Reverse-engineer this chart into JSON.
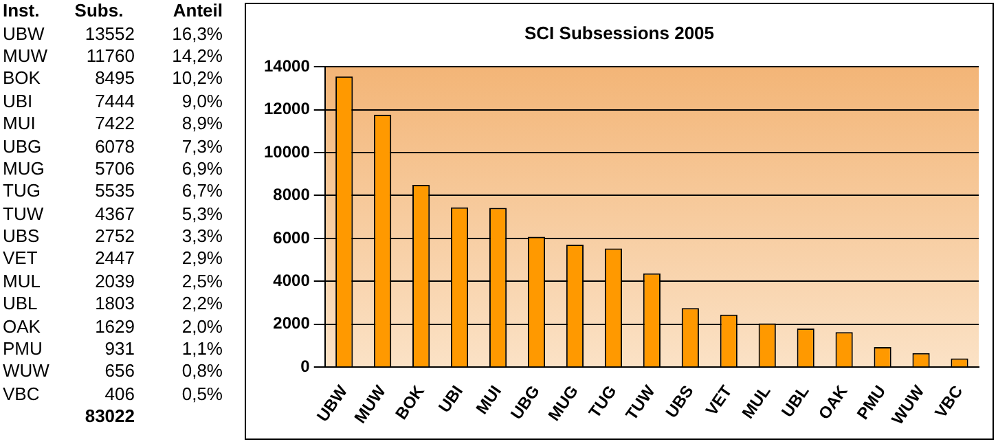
{
  "chart_data": [
    {
      "type": "other",
      "annotations": [
        "Inst.",
        "Subs.",
        "Anteil",
        "UBW",
        "13552",
        "16,3%",
        "MUW",
        "11760",
        "14,2%",
        "BOK",
        "8495",
        "10,2%",
        "UBI",
        "7444",
        "9,0%",
        "MUI",
        "7422",
        "8,9%",
        "UBG",
        "6078",
        "7,3%",
        "MUG",
        "5706",
        "6,9%",
        "TUG",
        "5535",
        "6,7%",
        "TUW",
        "4367",
        "5,3%",
        "UBS",
        "2752",
        "3,3%",
        "VET",
        "2447",
        "2,9%",
        "MUL",
        "2039",
        "2,5%",
        "UBL",
        "1803",
        "2,2%",
        "OAK",
        "1629",
        "2,0%",
        "PMU",
        "931",
        "1,1%",
        "WUW",
        "656",
        "0,8%",
        "VBC",
        "406",
        "0,5%",
        "83022"
      ]
    },
    {
      "type": "bar",
      "title": "SCI Subsessions 2005",
      "categories": [
        "UBW",
        "MUW",
        "BOK",
        "UBI",
        "MUI",
        "UBG",
        "MUG",
        "TUG",
        "TUW",
        "UBS",
        "VET",
        "MUL",
        "UBL",
        "OAK",
        "PMU",
        "WUW",
        "VBC"
      ],
      "values": [
        13552,
        11760,
        8495,
        7444,
        7422,
        6078,
        5706,
        5535,
        4367,
        2752,
        2447,
        2039,
        1803,
        1629,
        931,
        656,
        406
      ],
      "color": "#ff9900",
      "ylim": [
        0,
        14000
      ],
      "yticks": [
        0,
        2000,
        4000,
        6000,
        8000,
        10000,
        12000,
        14000
      ],
      "grid": "y",
      "legend": false
    }
  ]
}
